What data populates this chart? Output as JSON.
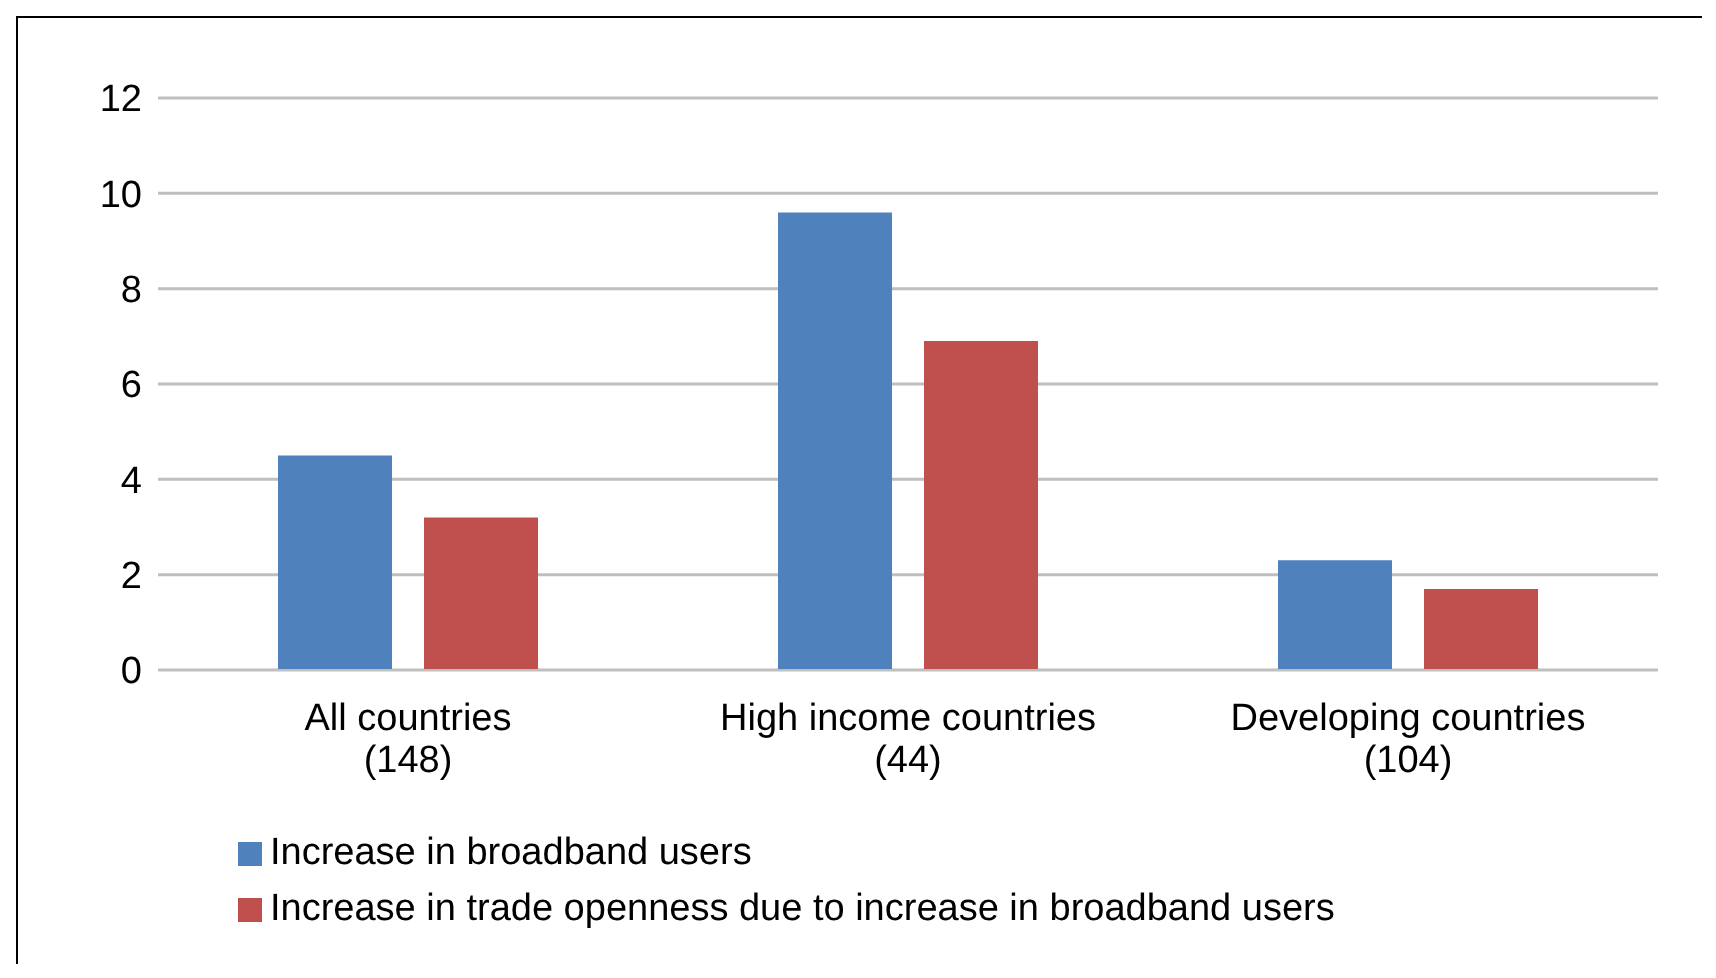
{
  "chart_data": {
    "type": "bar",
    "categories": [
      "All countries\n(148)",
      "High income countries\n(44)",
      "Developing countries\n(104)"
    ],
    "series": [
      {
        "name": "Increase in broadband users",
        "color": "#4f81bd",
        "values": [
          4.5,
          9.6,
          2.3
        ]
      },
      {
        "name": "Increase in trade openness due to increase in broadband users",
        "color": "#c0504d",
        "values": [
          3.2,
          6.9,
          1.7
        ]
      }
    ],
    "ylim": [
      0,
      12
    ],
    "yticks": [
      0,
      2,
      4,
      6,
      8,
      10,
      12
    ],
    "grid": "y",
    "legend": "bottom left"
  }
}
